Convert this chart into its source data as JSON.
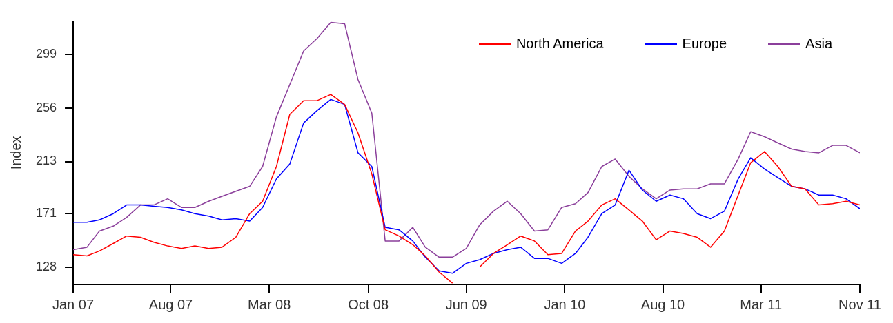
{
  "chart_data": {
    "type": "line",
    "ylabel": "Index",
    "x": [
      "2007-01",
      "2007-02",
      "2007-03",
      "2007-04",
      "2007-05",
      "2007-06",
      "2007-07",
      "2007-08",
      "2007-09",
      "2007-10",
      "2007-11",
      "2007-12",
      "2008-01",
      "2008-02",
      "2008-03",
      "2008-04",
      "2008-05",
      "2008-06",
      "2008-07",
      "2008-08",
      "2008-09",
      "2008-10",
      "2008-11",
      "2008-12",
      "2009-01",
      "2009-02",
      "2009-03",
      "2009-04",
      "2009-05",
      "2009-06",
      "2009-07",
      "2009-08",
      "2009-09",
      "2009-10",
      "2009-11",
      "2009-12",
      "2010-01",
      "2010-02",
      "2010-03",
      "2010-04",
      "2010-05",
      "2010-06",
      "2010-07",
      "2010-08",
      "2010-09",
      "2010-10",
      "2010-11",
      "2010-12",
      "2011-01",
      "2011-02",
      "2011-03",
      "2011-04",
      "2011-05",
      "2011-06",
      "2011-07",
      "2011-08",
      "2011-09",
      "2011-10",
      "2011-11"
    ],
    "series": [
      {
        "name": "North America",
        "color": "#ff0000",
        "values": [
          138,
          137,
          141,
          147,
          153,
          152,
          148,
          145,
          143,
          145,
          143,
          144,
          152,
          171,
          181,
          209,
          251,
          262,
          262,
          267,
          259,
          236,
          203,
          158,
          153,
          146,
          137,
          124,
          115,
          null,
          128,
          139,
          146,
          153,
          149,
          138,
          139,
          157,
          165,
          178,
          183,
          174,
          165,
          150,
          157,
          155,
          152,
          144,
          157,
          186,
          212,
          221,
          209,
          193,
          191,
          178,
          179,
          181,
          178
        ]
      },
      {
        "name": "Europe",
        "color": "#0000ff",
        "values": [
          164,
          164,
          166,
          171,
          178,
          178,
          177,
          176,
          174,
          171,
          169,
          166,
          167,
          165,
          176,
          199,
          211,
          244,
          254,
          263,
          259,
          220,
          209,
          160,
          158,
          149,
          136,
          125,
          123,
          131,
          134,
          139,
          142,
          144,
          135,
          135,
          131,
          139,
          152,
          171,
          178,
          206,
          190,
          181,
          186,
          183,
          171,
          167,
          173,
          199,
          216,
          207,
          200,
          193,
          191,
          186,
          186,
          183,
          175
        ]
      },
      {
        "name": "Asia",
        "color": "#8b3f9b",
        "values": [
          142,
          144,
          157,
          161,
          168,
          178,
          178,
          183,
          176,
          176,
          181,
          185,
          189,
          193,
          209,
          249,
          275,
          302,
          312,
          325,
          324,
          279,
          252,
          149,
          149,
          160,
          144,
          136,
          136,
          143,
          162,
          173,
          181,
          171,
          157,
          158,
          176,
          179,
          188,
          209,
          215,
          201,
          191,
          183,
          190,
          191,
          191,
          195,
          195,
          215,
          237,
          233,
          228,
          223,
          221,
          220,
          226,
          226,
          220
        ]
      }
    ],
    "ylim": [
      114,
      326
    ],
    "yticks": [
      128,
      171,
      213,
      256,
      299
    ],
    "xlim": [
      "2007-01-01",
      "2011-11-01"
    ],
    "xticks": [
      {
        "value": "2007-01-01",
        "label": "Jan 07"
      },
      {
        "value": "2007-08-08",
        "label": "Aug 07"
      },
      {
        "value": "2008-03-16",
        "label": "Mar 08"
      },
      {
        "value": "2008-10-24",
        "label": "Oct 08"
      },
      {
        "value": "2009-06-01",
        "label": "Jun 09"
      },
      {
        "value": "2010-01-08",
        "label": "Jan 10"
      },
      {
        "value": "2010-08-16",
        "label": "Aug 10"
      },
      {
        "value": "2011-03-24",
        "label": "Mar 11"
      },
      {
        "value": "2011-11-01",
        "label": "Nov 11"
      }
    ],
    "grid": false,
    "legend": "top right",
    "marker": "none",
    "line_style": "solid"
  }
}
